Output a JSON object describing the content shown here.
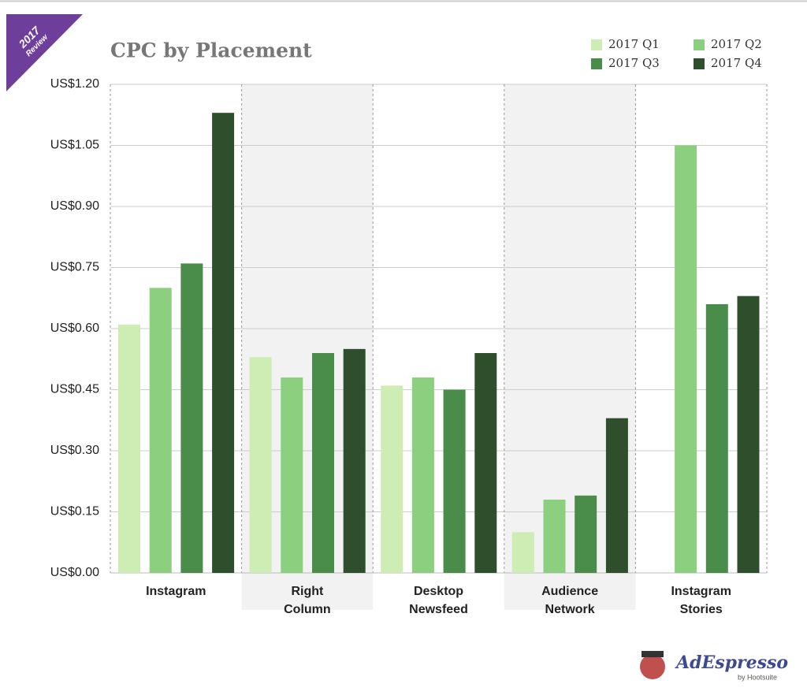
{
  "badge": {
    "year": "2017",
    "label": "Review"
  },
  "logo": {
    "name": "AdEspresso",
    "by": "by Hootsuite"
  },
  "chart_data": {
    "type": "bar",
    "title": "CPC by Placement",
    "categories": [
      "Instagram",
      "Right Column",
      "Desktop Newsfeed",
      "Audience Network",
      "Instagram Stories"
    ],
    "series": [
      {
        "name": "2017 Q1",
        "color": "#cdedb5",
        "values": [
          0.61,
          0.53,
          0.46,
          0.1,
          null
        ]
      },
      {
        "name": "2017 Q2",
        "color": "#8ccf7e",
        "values": [
          0.7,
          0.48,
          0.48,
          0.18,
          1.05
        ]
      },
      {
        "name": "2017 Q3",
        "color": "#4a8c4a",
        "values": [
          0.76,
          0.54,
          0.45,
          0.19,
          0.66
        ]
      },
      {
        "name": "2017 Q4",
        "color": "#2f4f2c",
        "values": [
          1.13,
          0.55,
          0.54,
          0.38,
          0.68
        ]
      }
    ],
    "ylim": [
      0,
      1.2
    ],
    "yticks": [
      {
        "value": 0,
        "label": "US$0.00"
      },
      {
        "value": 0.15,
        "label": "US$0.15"
      },
      {
        "value": 0.3,
        "label": "US$0.30"
      },
      {
        "value": 0.45,
        "label": "US$0.45"
      },
      {
        "value": 0.6,
        "label": "US$0.60"
      },
      {
        "value": 0.75,
        "label": "US$0.75"
      },
      {
        "value": 0.9,
        "label": "US$0.90"
      },
      {
        "value": 1.05,
        "label": "US$1.05"
      },
      {
        "value": 1.2,
        "label": "US$1.20"
      }
    ],
    "grid": true,
    "legend": "top-right"
  }
}
